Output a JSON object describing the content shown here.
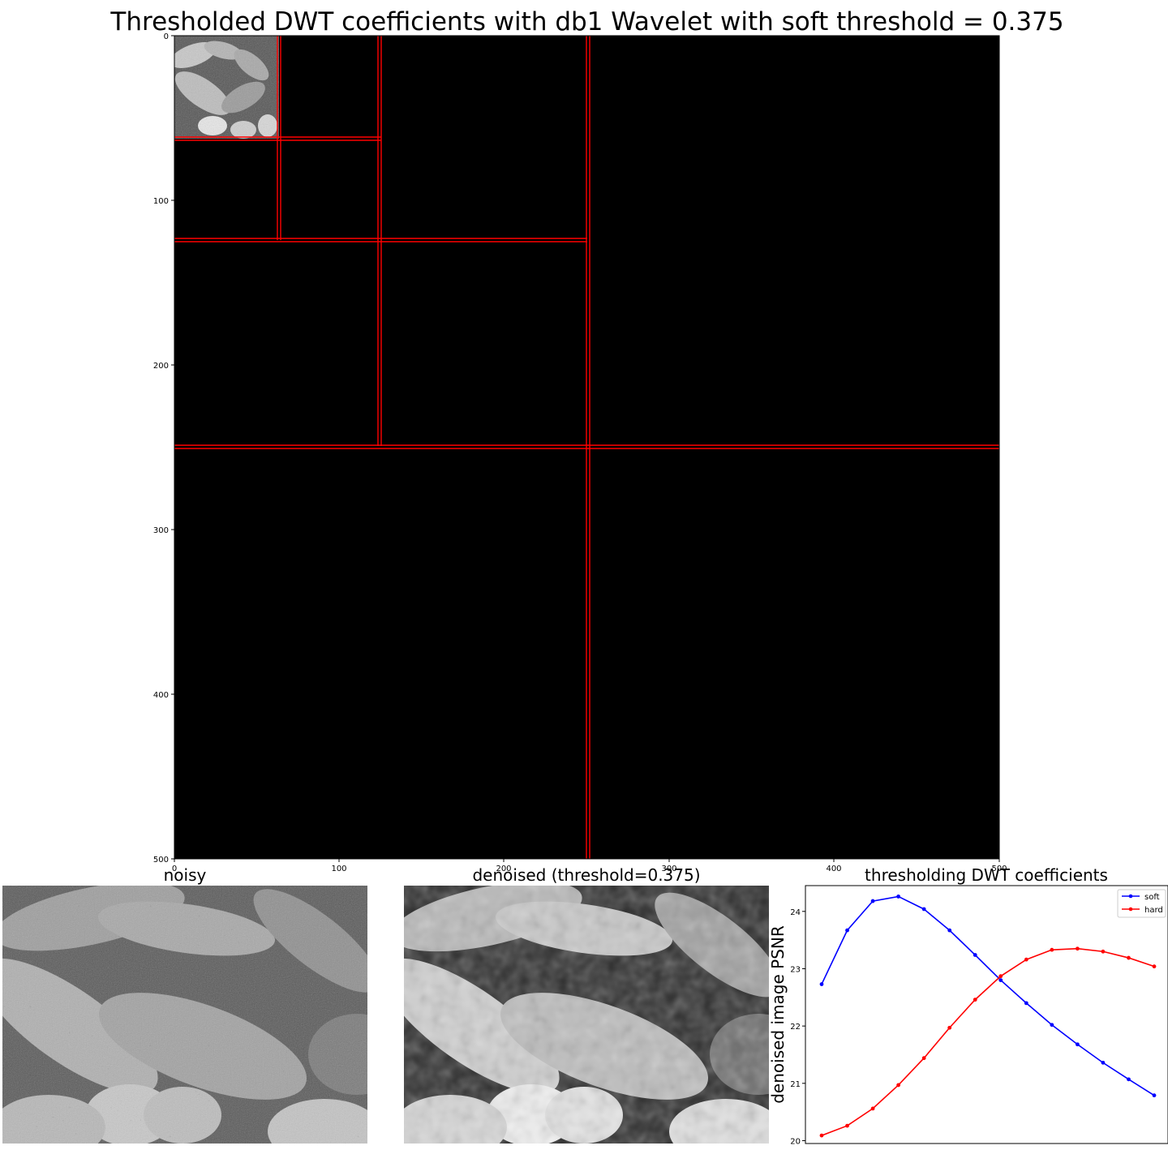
{
  "figure": {
    "title": "Thresholded DWT coefficients with db1 Wavelet with soft threshold = 0.375",
    "colors": {
      "grid_line": "#ff0000",
      "coef_background": "#000000"
    }
  },
  "panels": {
    "coefficients": {
      "xticks": [
        "0",
        "100",
        "200",
        "300",
        "400",
        "500"
      ],
      "yticks": [
        "0",
        "100",
        "200",
        "300",
        "400",
        "500"
      ]
    },
    "noisy": {
      "title": "noisy"
    },
    "denoised": {
      "title": "denoised (threshold=0.375)"
    }
  },
  "chart_data": {
    "type": "line",
    "title": "thresholding DWT coefficients",
    "xlabel": "",
    "ylabel": "denoised image PSNR",
    "x": [
      1,
      2,
      3,
      4,
      5,
      6,
      7,
      8,
      9,
      10,
      11,
      12,
      13,
      14
    ],
    "ylim": [
      19.95,
      24.45
    ],
    "yticks": [
      20,
      21,
      22,
      23,
      24
    ],
    "grid": false,
    "legend": "top-right",
    "series": [
      {
        "name": "soft",
        "color": "#0000ff",
        "values": [
          22.73,
          23.67,
          24.18,
          24.26,
          24.04,
          23.67,
          23.24,
          22.8,
          22.4,
          22.02,
          21.68,
          21.36,
          21.07,
          20.79
        ]
      },
      {
        "name": "hard",
        "color": "#ff0000",
        "values": [
          20.09,
          20.26,
          20.56,
          20.97,
          21.44,
          21.97,
          22.46,
          22.87,
          23.16,
          23.33,
          23.35,
          23.3,
          23.19,
          23.04
        ]
      }
    ]
  }
}
